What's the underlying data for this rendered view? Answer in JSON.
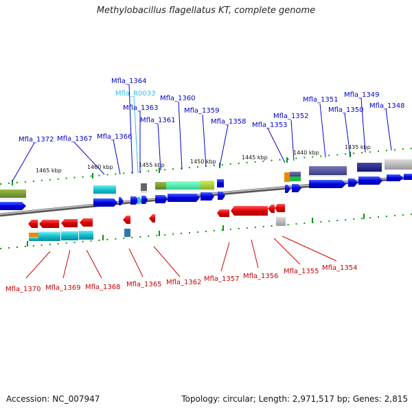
{
  "title": "Methylobacillus flagellatus KT, complete genome",
  "accession": "Accession: NC_007947",
  "stats": "Topology: circular; Length: 2,971,517 bp; Genes: 2,815",
  "kbp_labels": [
    "1465 kbp",
    "1460 kbp",
    "1455 kbp",
    "1450 kbp",
    "1445 kbp",
    "1440 kbp",
    "1435 kbp"
  ],
  "top_labels": [
    {
      "name": "Mfla_1372",
      "color": "#0000cc"
    },
    {
      "name": "Mfla_1367",
      "color": "#0000cc"
    },
    {
      "name": "Mfla_1366",
      "color": "#0000cc"
    },
    {
      "name": "Mfla_1364",
      "color": "#0000cc"
    },
    {
      "name": "Mfla_R0033",
      "color": "#33bbee"
    },
    {
      "name": "Mfla_1363",
      "color": "#0000cc"
    },
    {
      "name": "Mfla_1361",
      "color": "#0000cc"
    },
    {
      "name": "Mfla_1360",
      "color": "#0000cc"
    },
    {
      "name": "Mfla_1359",
      "color": "#0000cc"
    },
    {
      "name": "Mfla_1358",
      "color": "#0000cc"
    },
    {
      "name": "Mfla_1353",
      "color": "#0000cc"
    },
    {
      "name": "Mfla_1352",
      "color": "#0000cc"
    },
    {
      "name": "Mfla_1351",
      "color": "#0000cc"
    },
    {
      "name": "Mfla_1350",
      "color": "#0000cc"
    },
    {
      "name": "Mfla_1349",
      "color": "#0000cc"
    },
    {
      "name": "Mfla_1348",
      "color": "#0000cc"
    }
  ],
  "bottom_labels": [
    {
      "name": "Mfla_1370",
      "color": "#cc0000"
    },
    {
      "name": "Mfla_1369",
      "color": "#cc0000"
    },
    {
      "name": "Mfla_1368",
      "color": "#cc0000"
    },
    {
      "name": "Mfla_1365",
      "color": "#cc0000"
    },
    {
      "name": "Mfla_1362",
      "color": "#cc0000"
    },
    {
      "name": "Mfla_1357",
      "color": "#cc0000"
    },
    {
      "name": "Mfla_1356",
      "color": "#cc0000"
    },
    {
      "name": "Mfla_1355",
      "color": "#cc0000"
    },
    {
      "name": "Mfla_1354",
      "color": "#cc0000"
    }
  ],
  "colors": {
    "forward_gene": "#0000dd",
    "reverse_gene": "#dd0000",
    "backbone": "#888888",
    "tick": "#009900"
  }
}
